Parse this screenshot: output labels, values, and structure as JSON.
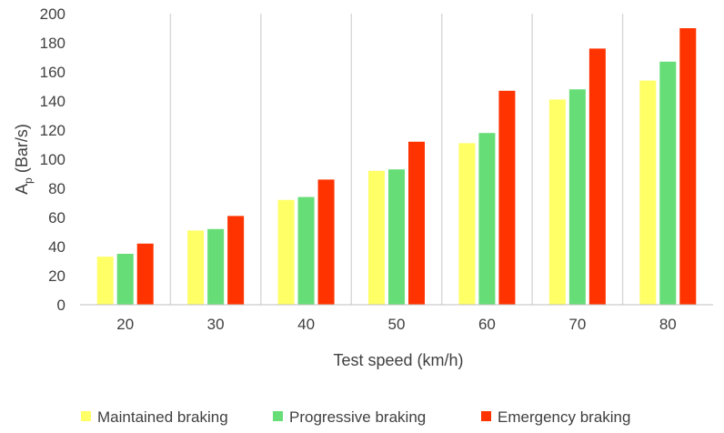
{
  "chart_data": {
    "type": "bar",
    "title": "",
    "xlabel": "Test speed (km/h)",
    "ylabel": "Ap (Bar/s)",
    "ylabel_main": "A",
    "ylabel_sub": "p",
    "ylabel_rest": " (Bar/s)",
    "ylim": [
      0,
      200
    ],
    "yticks": [
      0,
      20,
      40,
      60,
      80,
      100,
      120,
      140,
      160,
      180,
      200
    ],
    "grid": "vertical category separators",
    "legend_position": "bottom",
    "categories": [
      "20",
      "30",
      "40",
      "50",
      "60",
      "70",
      "80"
    ],
    "series": [
      {
        "name": "Maintained braking",
        "color": "#FFFF66",
        "values": [
          33,
          51,
          72,
          92,
          111,
          141,
          154
        ]
      },
      {
        "name": "Progressive braking",
        "color": "#66DD77",
        "values": [
          35,
          52,
          74,
          93,
          118,
          148,
          167
        ]
      },
      {
        "name": "Emergency braking",
        "color": "#FF3300",
        "values": [
          42,
          61,
          86,
          112,
          147,
          176,
          190
        ]
      }
    ]
  }
}
